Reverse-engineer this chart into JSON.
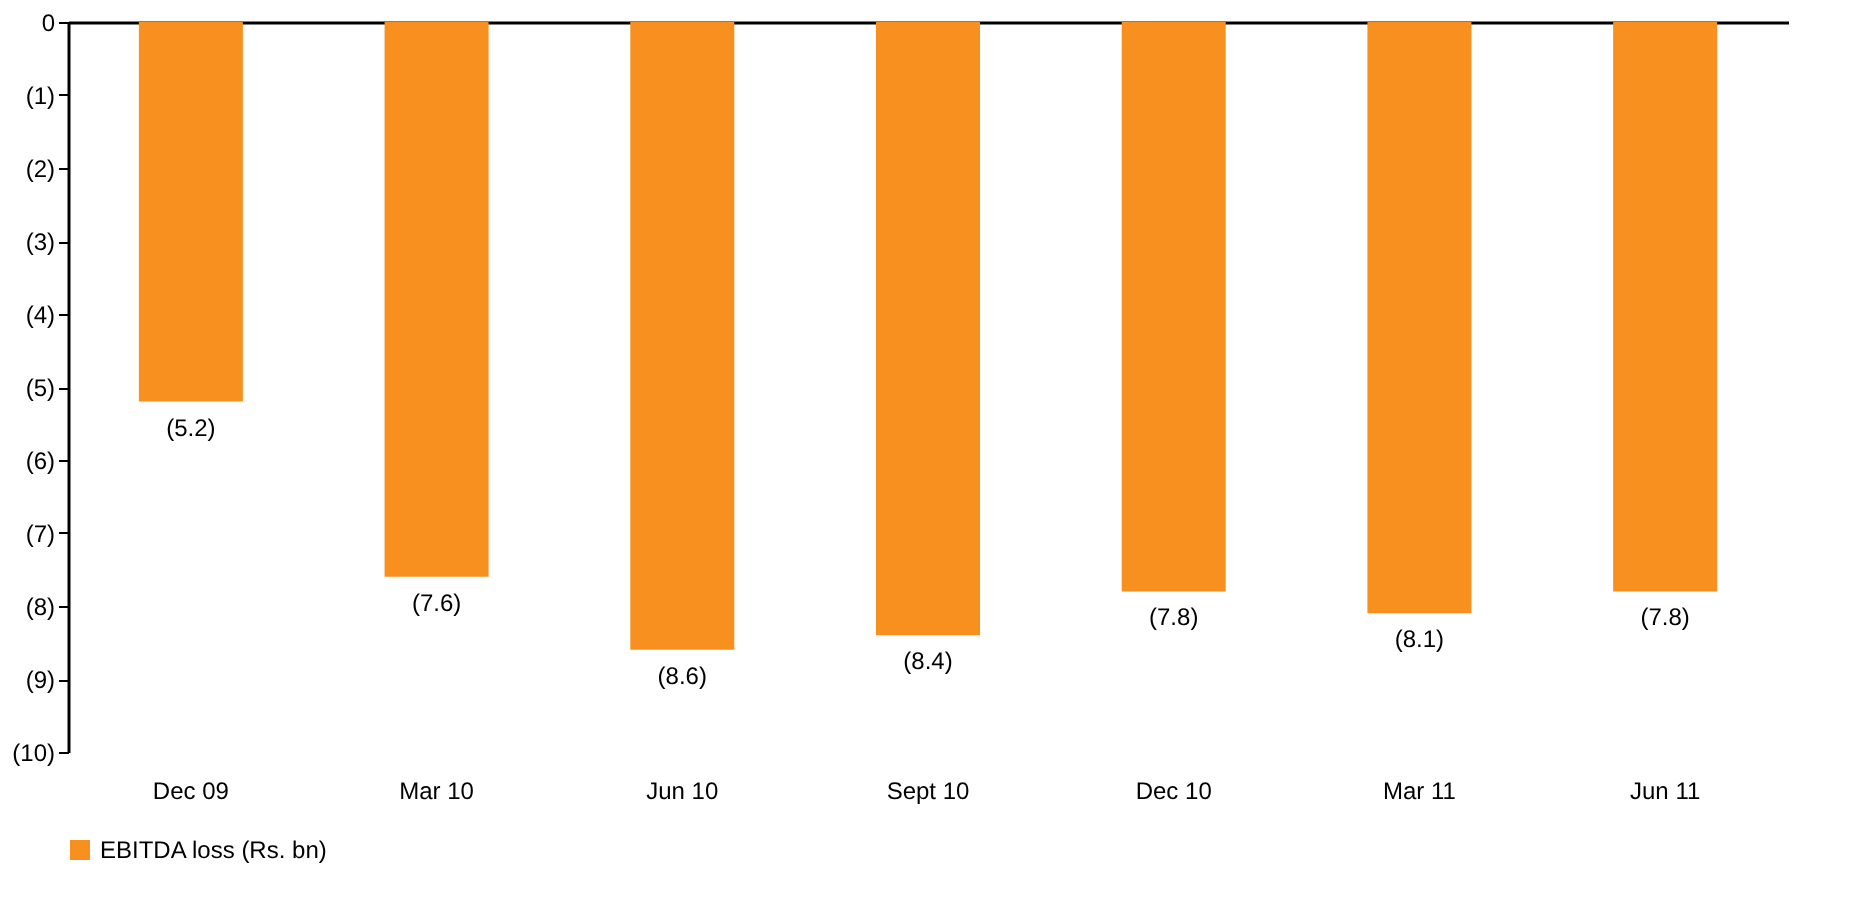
{
  "chart_data": {
    "type": "bar",
    "categories": [
      "Dec 09",
      "Mar 10",
      "Jun 10",
      "Sept 10",
      "Dec 10",
      "Mar 11",
      "Jun 11"
    ],
    "series": [
      {
        "name": "EBITDA loss (Rs. bn)",
        "color": "#f7901e",
        "values": [
          -5.2,
          -7.6,
          -8.6,
          -8.4,
          -7.8,
          -8.1,
          -7.8
        ],
        "value_labels": [
          "(5.2)",
          "(7.6)",
          "(8.6)",
          "(8.4)",
          "(7.8)",
          "(8.1)",
          "(7.8)"
        ]
      }
    ],
    "ylim": [
      -10,
      0
    ],
    "yticks": [
      {
        "value": -10,
        "label": "(10)"
      },
      {
        "value": -9,
        "label": "(9)"
      },
      {
        "value": -8,
        "label": "(8)"
      },
      {
        "value": -7,
        "label": "(7)"
      },
      {
        "value": -6,
        "label": "(6)"
      },
      {
        "value": -5,
        "label": "(5)"
      },
      {
        "value": -4,
        "label": "(4)"
      },
      {
        "value": -3,
        "label": "(3)"
      },
      {
        "value": -2,
        "label": "(2)"
      },
      {
        "value": -1,
        "label": "(1)"
      },
      0
    ],
    "grid": false,
    "legend": "bottom"
  }
}
